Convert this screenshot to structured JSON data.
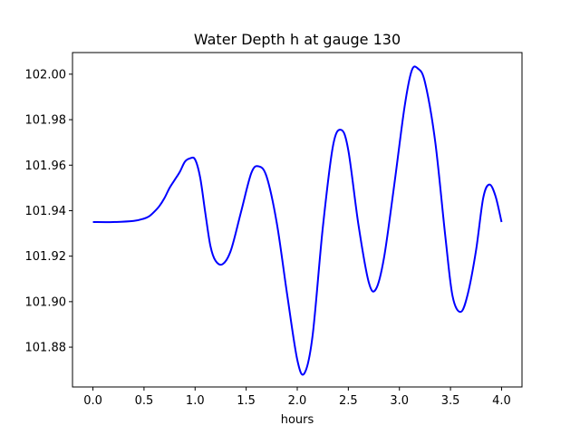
{
  "chart_data": {
    "type": "line",
    "title": "Water Depth h at gauge 130",
    "xlabel": "hours",
    "ylabel": "",
    "xlim": [
      -0.2,
      4.2
    ],
    "ylim": [
      101.8625,
      102.0095
    ],
    "xticks": [
      0.0,
      0.5,
      1.0,
      1.5,
      2.0,
      2.5,
      3.0,
      3.5,
      4.0
    ],
    "xtick_labels": [
      "0.0",
      "0.5",
      "1.0",
      "1.5",
      "2.0",
      "2.5",
      "3.0",
      "3.5",
      "4.0"
    ],
    "yticks": [
      101.88,
      101.9,
      101.92,
      101.94,
      101.96,
      101.98,
      102.0
    ],
    "ytick_labels": [
      "101.88",
      "101.90",
      "101.92",
      "101.94",
      "101.96",
      "101.98",
      "102.00"
    ],
    "grid": false,
    "series": [
      {
        "color": "#0000ff",
        "x": [
          0.0,
          0.2,
          0.4,
          0.5,
          0.55,
          0.6,
          0.65,
          0.7,
          0.75,
          0.8,
          0.85,
          0.9,
          0.95,
          1.0,
          1.05,
          1.1,
          1.15,
          1.2,
          1.27,
          1.35,
          1.45,
          1.55,
          1.62,
          1.7,
          1.8,
          1.9,
          2.0,
          2.07,
          2.15,
          2.25,
          2.35,
          2.43,
          2.5,
          2.6,
          2.7,
          2.77,
          2.85,
          2.95,
          3.05,
          3.12,
          3.18,
          3.25,
          3.35,
          3.45,
          3.52,
          3.6,
          3.67,
          3.75,
          3.82,
          3.88,
          3.94,
          4.0
        ],
        "y": [
          101.935,
          101.935,
          101.9355,
          101.9365,
          101.9375,
          101.9395,
          101.942,
          101.9455,
          101.95,
          101.9535,
          101.957,
          101.9615,
          101.963,
          101.9625,
          101.9545,
          101.939,
          101.9245,
          101.918,
          101.9165,
          101.9225,
          101.9395,
          101.9565,
          101.9595,
          101.955,
          101.9345,
          101.9035,
          101.8745,
          101.8685,
          101.885,
          101.9325,
          101.9685,
          101.9755,
          101.9665,
          101.9335,
          101.9085,
          101.9055,
          101.9195,
          101.9515,
          101.9855,
          102.0015,
          102.0025,
          101.9965,
          101.9705,
          101.9285,
          101.9025,
          101.8955,
          101.9035,
          101.9225,
          101.9455,
          101.9515,
          101.9465,
          101.935
        ]
      }
    ]
  }
}
